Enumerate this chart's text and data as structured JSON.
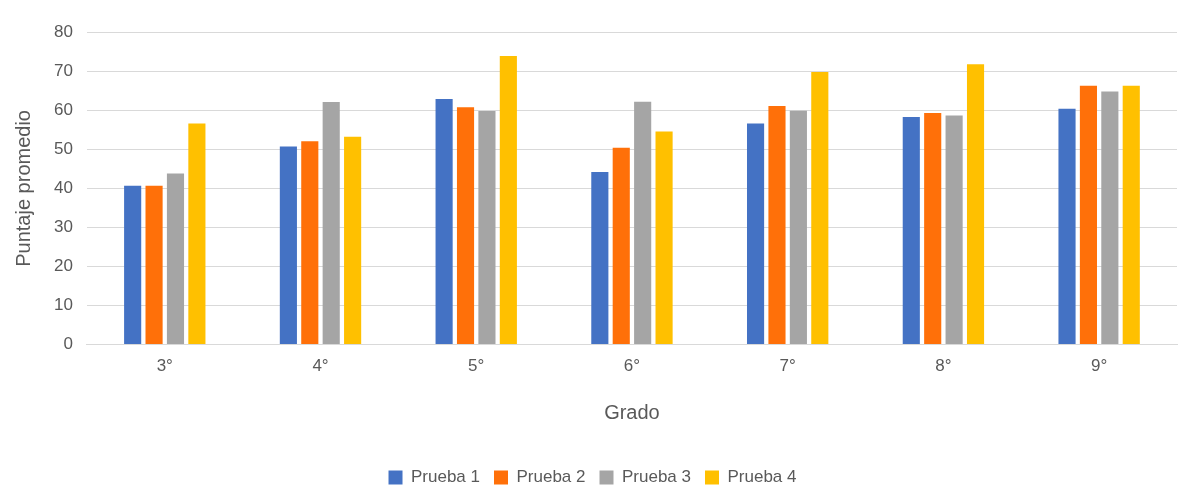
{
  "chart_data": {
    "type": "bar",
    "xlabel": "Grado",
    "ylabel": "Puntaje promedio",
    "categories": [
      "3°",
      "4°",
      "5°",
      "6°",
      "7°",
      "8°",
      "9°"
    ],
    "series": [
      {
        "name": "Prueba 1",
        "color": "#4472c4",
        "values": [
          40.7,
          50.7,
          62.9,
          44.2,
          56.6,
          58.3,
          60.4
        ]
      },
      {
        "name": "Prueba 2",
        "color": "#ff7009",
        "values": [
          40.7,
          52.1,
          60.8,
          50.4,
          61.1,
          59.3,
          66.3
        ]
      },
      {
        "name": "Prueba 3",
        "color": "#a5a5a5",
        "values": [
          43.8,
          62.1,
          59.8,
          62.2,
          59.9,
          58.7,
          64.8
        ]
      },
      {
        "name": "Prueba 4",
        "color": "#ffc000",
        "values": [
          56.6,
          53.2,
          73.9,
          54.6,
          69.8,
          71.8,
          66.3
        ]
      }
    ],
    "ylim": [
      0,
      80
    ],
    "yticks": [
      0,
      10,
      20,
      30,
      40,
      50,
      60,
      70,
      80
    ],
    "grid": "y",
    "legend": "bottom"
  }
}
